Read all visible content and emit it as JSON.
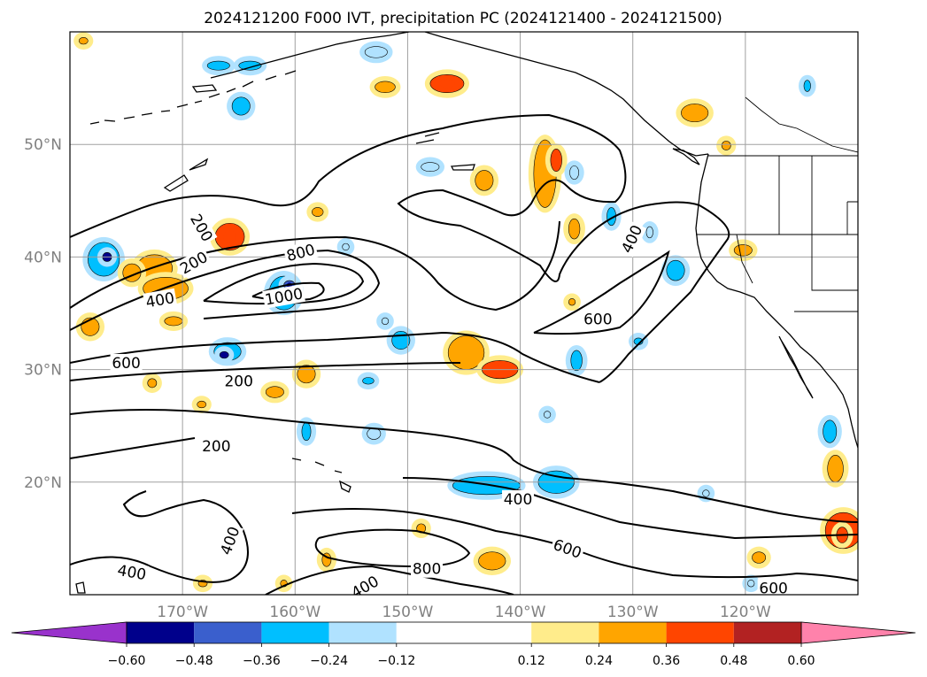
{
  "chart_data": {
    "type": "contour",
    "title": "2024121200 F000 IVT, precipitation PC (2024121400 - 2024121500)",
    "map": {
      "lon_range": [
        -180,
        -110
      ],
      "lat_range": [
        10,
        60
      ],
      "lon_ticks": [
        -170,
        -160,
        -150,
        -140,
        -130,
        -120
      ],
      "lon_tick_labels": [
        "170°W",
        "160°W",
        "150°W",
        "140°W",
        "130°W",
        "120°W"
      ],
      "lat_ticks": [
        20,
        30,
        40,
        50
      ],
      "lat_tick_labels": [
        "20°N",
        "30°N",
        "40°N",
        "50°N"
      ],
      "grid": true
    },
    "ivt_contour_labels": [
      {
        "text": "200",
        "lon": -168.3,
        "lat": 42.6,
        "rot": 60
      },
      {
        "text": "200",
        "lon": -169.0,
        "lat": 39.5,
        "rot": -30
      },
      {
        "text": "400",
        "lon": -172.0,
        "lat": 36.2,
        "rot": -10
      },
      {
        "text": "800",
        "lon": -159.5,
        "lat": 40.4,
        "rot": -15
      },
      {
        "text": "1000",
        "lon": -161.0,
        "lat": 36.5,
        "rot": -10
      },
      {
        "text": "600",
        "lon": -175.0,
        "lat": 30.6,
        "rot": 0
      },
      {
        "text": "200",
        "lon": -165.0,
        "lat": 29.0,
        "rot": 0
      },
      {
        "text": "200",
        "lon": -167.0,
        "lat": 23.2,
        "rot": 0
      },
      {
        "text": "400",
        "lon": -130.1,
        "lat": 41.6,
        "rot": -65
      },
      {
        "text": "600",
        "lon": -133.1,
        "lat": 34.5,
        "rot": 0
      },
      {
        "text": "400",
        "lon": -140.2,
        "lat": 18.5,
        "rot": 0
      },
      {
        "text": "600",
        "lon": -135.8,
        "lat": 14.1,
        "rot": 20
      },
      {
        "text": "800",
        "lon": -148.3,
        "lat": 12.3,
        "rot": 0
      },
      {
        "text": "400",
        "lon": -165.8,
        "lat": 14.8,
        "rot": -70
      },
      {
        "text": "400",
        "lon": -174.5,
        "lat": 12.0,
        "rot": 10
      },
      {
        "text": "400",
        "lon": -153.8,
        "lat": 10.7,
        "rot": -30
      },
      {
        "text": "600",
        "lon": -117.5,
        "lat": 10.6,
        "rot": 0
      }
    ],
    "colorbar": {
      "levels": [
        -0.72,
        -0.6,
        -0.48,
        -0.36,
        -0.24,
        -0.12,
        0.12,
        0.24,
        0.36,
        0.48,
        0.6,
        0.72
      ],
      "colors": [
        "#9932cc",
        "#00008b",
        "#3a5fcd",
        "#00bfff",
        "#b0e2ff",
        "#ffffff",
        "#ffec8b",
        "#ffa500",
        "#ff4500",
        "#b22222",
        "#ff82ab"
      ],
      "under_color": "#9932cc",
      "over_color": "#ff82ab",
      "tick_values": [
        -0.6,
        -0.48,
        -0.36,
        -0.24,
        -0.12,
        0.12,
        0.24,
        0.36,
        0.48,
        0.6
      ],
      "tick_labels": [
        "−0.60",
        "−0.48",
        "−0.36",
        "−0.24",
        "−0.12",
        "0.12",
        "0.24",
        "0.36",
        "0.48",
        "0.60"
      ]
    },
    "precip_anomalies": [
      {
        "lon": -165.8,
        "lat": 41.8,
        "rx": 1.3,
        "ry": 1.2,
        "v": 0.4
      },
      {
        "lon": -172.5,
        "lat": 39.0,
        "rx": 1.6,
        "ry": 1.2,
        "v": 0.3
      },
      {
        "lon": -171.5,
        "lat": 37.2,
        "rx": 2.0,
        "ry": 1.0,
        "v": 0.3
      },
      {
        "lon": -177.0,
        "lat": 39.8,
        "rx": 1.4,
        "ry": 1.5,
        "v": -0.34
      },
      {
        "lon": -176.7,
        "lat": 40.0,
        "rx": 0.4,
        "ry": 0.4,
        "v": -0.5
      },
      {
        "lon": -161.0,
        "lat": 36.8,
        "rx": 1.3,
        "ry": 1.5,
        "v": -0.34
      },
      {
        "lon": -160.5,
        "lat": 37.5,
        "rx": 0.5,
        "ry": 0.4,
        "v": -0.48
      },
      {
        "lon": -166.0,
        "lat": 31.6,
        "rx": 1.2,
        "ry": 0.8,
        "v": -0.3
      },
      {
        "lon": -166.3,
        "lat": 31.3,
        "rx": 0.4,
        "ry": 0.3,
        "v": -0.5
      },
      {
        "lon": -178.2,
        "lat": 33.8,
        "rx": 0.8,
        "ry": 0.8,
        "v": 0.3
      },
      {
        "lon": -174.5,
        "lat": 38.6,
        "rx": 0.8,
        "ry": 0.8,
        "v": 0.3
      },
      {
        "lon": -170.8,
        "lat": 34.3,
        "rx": 0.8,
        "ry": 0.4,
        "v": 0.28
      },
      {
        "lon": -159.0,
        "lat": 29.6,
        "rx": 0.8,
        "ry": 0.8,
        "v": 0.3
      },
      {
        "lon": -161.8,
        "lat": 28.0,
        "rx": 0.8,
        "ry": 0.5,
        "v": 0.3
      },
      {
        "lon": -172.7,
        "lat": 28.8,
        "rx": 0.4,
        "ry": 0.4,
        "v": 0.3
      },
      {
        "lon": -168.3,
        "lat": 26.9,
        "rx": 0.4,
        "ry": 0.3,
        "v": 0.3
      },
      {
        "lon": -164.8,
        "lat": 53.4,
        "rx": 0.8,
        "ry": 0.8,
        "v": -0.28
      },
      {
        "lon": -166.8,
        "lat": 57.0,
        "rx": 1.0,
        "ry": 0.4,
        "v": -0.26
      },
      {
        "lon": -164.0,
        "lat": 57.0,
        "rx": 1.0,
        "ry": 0.4,
        "v": -0.3
      },
      {
        "lon": -152.8,
        "lat": 58.2,
        "rx": 1.0,
        "ry": 0.5,
        "v": -0.2
      },
      {
        "lon": -146.5,
        "lat": 55.4,
        "rx": 1.5,
        "ry": 0.8,
        "v": 0.36
      },
      {
        "lon": -152.0,
        "lat": 55.1,
        "rx": 0.9,
        "ry": 0.5,
        "v": 0.3
      },
      {
        "lon": -158.0,
        "lat": 44.0,
        "rx": 0.5,
        "ry": 0.4,
        "v": 0.3
      },
      {
        "lon": -148.0,
        "lat": 48.0,
        "rx": 0.8,
        "ry": 0.4,
        "v": -0.2
      },
      {
        "lon": -143.2,
        "lat": 46.8,
        "rx": 0.8,
        "ry": 0.9,
        "v": 0.3
      },
      {
        "lon": -137.8,
        "lat": 47.4,
        "rx": 1.0,
        "ry": 3.0,
        "v": 0.3
      },
      {
        "lon": -136.8,
        "lat": 48.6,
        "rx": 0.5,
        "ry": 1.0,
        "v": 0.4
      },
      {
        "lon": -135.2,
        "lat": 42.5,
        "rx": 0.5,
        "ry": 0.9,
        "v": 0.3
      },
      {
        "lon": -135.2,
        "lat": 47.5,
        "rx": 0.4,
        "ry": 0.6,
        "v": -0.2
      },
      {
        "lon": -135.4,
        "lat": 36.0,
        "rx": 0.3,
        "ry": 0.3,
        "v": 0.3
      },
      {
        "lon": -131.9,
        "lat": 43.6,
        "rx": 0.4,
        "ry": 0.8,
        "v": -0.25
      },
      {
        "lon": -128.5,
        "lat": 42.2,
        "rx": 0.3,
        "ry": 0.5,
        "v": -0.24
      },
      {
        "lon": -126.2,
        "lat": 38.8,
        "rx": 0.8,
        "ry": 0.9,
        "v": -0.26
      },
      {
        "lon": -124.5,
        "lat": 52.8,
        "rx": 1.2,
        "ry": 0.8,
        "v": 0.34
      },
      {
        "lon": -121.7,
        "lat": 49.9,
        "rx": 0.4,
        "ry": 0.4,
        "v": 0.24
      },
      {
        "lon": -120.2,
        "lat": 40.6,
        "rx": 0.8,
        "ry": 0.5,
        "v": 0.34
      },
      {
        "lon": -114.5,
        "lat": 55.2,
        "rx": 0.3,
        "ry": 0.5,
        "v": -0.25
      },
      {
        "lon": -144.8,
        "lat": 31.5,
        "rx": 1.6,
        "ry": 1.5,
        "v": 0.3
      },
      {
        "lon": -141.8,
        "lat": 30.0,
        "rx": 1.6,
        "ry": 0.8,
        "v": 0.36
      },
      {
        "lon": -150.6,
        "lat": 32.6,
        "rx": 0.8,
        "ry": 0.8,
        "v": -0.34
      },
      {
        "lon": -135.0,
        "lat": 30.8,
        "rx": 0.5,
        "ry": 0.9,
        "v": -0.3
      },
      {
        "lon": -153.5,
        "lat": 29.0,
        "rx": 0.5,
        "ry": 0.3,
        "v": -0.25
      },
      {
        "lon": -152.0,
        "lat": 34.3,
        "rx": 0.3,
        "ry": 0.3,
        "v": -0.2
      },
      {
        "lon": -155.5,
        "lat": 40.9,
        "rx": 0.3,
        "ry": 0.3,
        "v": -0.2
      },
      {
        "lon": -159.0,
        "lat": 24.5,
        "rx": 0.4,
        "ry": 0.8,
        "v": -0.28
      },
      {
        "lon": -153.0,
        "lat": 24.3,
        "rx": 0.6,
        "ry": 0.5,
        "v": -0.2
      },
      {
        "lon": -143.0,
        "lat": 19.7,
        "rx": 3.0,
        "ry": 0.8,
        "v": -0.3
      },
      {
        "lon": -136.8,
        "lat": 20.0,
        "rx": 1.6,
        "ry": 1.0,
        "v": -0.34
      },
      {
        "lon": -129.5,
        "lat": 32.5,
        "rx": 0.4,
        "ry": 0.3,
        "v": -0.25
      },
      {
        "lon": -137.6,
        "lat": 26.0,
        "rx": 0.3,
        "ry": 0.3,
        "v": -0.2
      },
      {
        "lon": -111.3,
        "lat": 15.7,
        "rx": 1.6,
        "ry": 1.6,
        "v": 0.4
      },
      {
        "lon": -111.4,
        "lat": 15.3,
        "rx": 0.5,
        "ry": 0.7,
        "v": 0.4
      },
      {
        "lon": -112.0,
        "lat": 21.2,
        "rx": 0.7,
        "ry": 1.2,
        "v": 0.34
      },
      {
        "lon": -112.5,
        "lat": 24.5,
        "rx": 0.6,
        "ry": 1.0,
        "v": -0.28
      },
      {
        "lon": -142.5,
        "lat": 13.0,
        "rx": 1.2,
        "ry": 0.8,
        "v": 0.3
      },
      {
        "lon": -157.2,
        "lat": 13.1,
        "rx": 0.4,
        "ry": 0.6,
        "v": 0.28
      },
      {
        "lon": -148.8,
        "lat": 15.9,
        "rx": 0.4,
        "ry": 0.4,
        "v": 0.28
      },
      {
        "lon": -118.8,
        "lat": 13.3,
        "rx": 0.6,
        "ry": 0.5,
        "v": 0.3
      },
      {
        "lon": -119.5,
        "lat": 11.0,
        "rx": 0.3,
        "ry": 0.3,
        "v": -0.2
      },
      {
        "lon": -123.5,
        "lat": 19.0,
        "rx": 0.3,
        "ry": 0.3,
        "v": -0.2
      },
      {
        "lon": -168.2,
        "lat": 11.0,
        "rx": 0.4,
        "ry": 0.3,
        "v": 0.3
      },
      {
        "lon": -161.0,
        "lat": 11.0,
        "rx": 0.3,
        "ry": 0.3,
        "v": 0.3
      },
      {
        "lon": -178.8,
        "lat": 59.2,
        "rx": 0.4,
        "ry": 0.3,
        "v": 0.24
      }
    ]
  }
}
